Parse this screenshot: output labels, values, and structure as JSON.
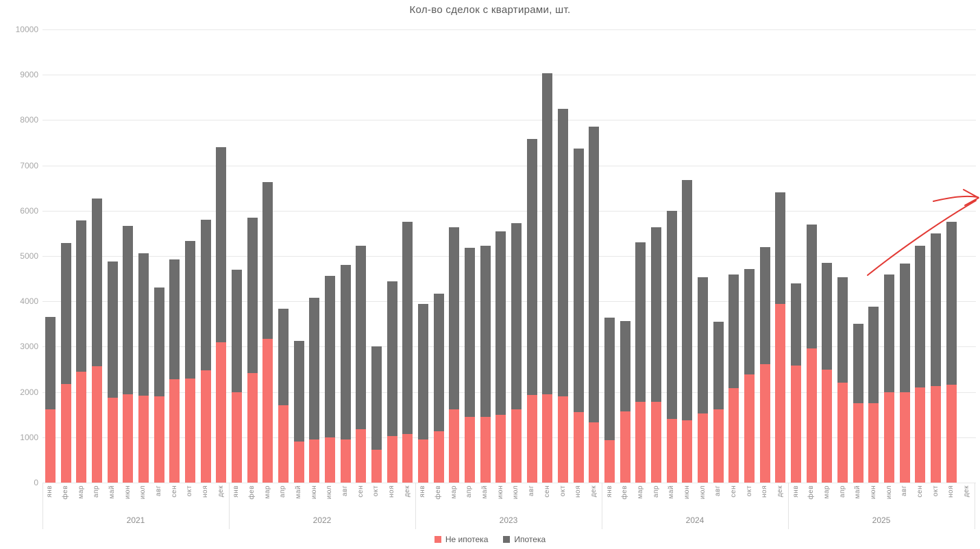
{
  "annotation": {
    "type": "hand-drawn-arrow",
    "color": "#e23a35"
  },
  "chart_data": {
    "type": "bar",
    "stacked": true,
    "title": "Кол-во сделок с квартирами, шт.",
    "xlabel": "",
    "ylabel": "",
    "ylim": [
      0,
      10000
    ],
    "ytick_step": 1000,
    "grid": true,
    "legend_position": "bottom",
    "month_labels": [
      "янв",
      "фев",
      "мар",
      "апр",
      "май",
      "июн",
      "июл",
      "авг",
      "сен",
      "окт",
      "ноя",
      "дек"
    ],
    "year_groups": [
      {
        "label": "2021"
      },
      {
        "label": "2022"
      },
      {
        "label": "2023"
      },
      {
        "label": "2024"
      },
      {
        "label": "2025"
      }
    ],
    "series": [
      {
        "name": "Не ипотека",
        "color": "#f7726e",
        "values": [
          1620,
          2180,
          2450,
          2570,
          1880,
          1950,
          1920,
          1900,
          2280,
          2300,
          2480,
          3100,
          2000,
          2420,
          3170,
          1700,
          900,
          950,
          1000,
          950,
          1180,
          730,
          1020,
          1080,
          950,
          1130,
          1620,
          1450,
          1450,
          1500,
          1620,
          1930,
          1950,
          1900,
          1550,
          1330,
          930,
          1570,
          1790,
          1790,
          1400,
          1380,
          1520,
          1620,
          2090,
          2380,
          2620,
          3950,
          2580,
          2960,
          2500,
          2210,
          1750,
          1760,
          2000,
          2000,
          2100,
          2130,
          2160,
          null
        ]
      },
      {
        "name": "Ипотека",
        "color": "#6d6d6d",
        "values": [
          2030,
          3100,
          3330,
          3700,
          3000,
          3710,
          3140,
          2400,
          2640,
          3040,
          3320,
          4300,
          2700,
          3430,
          3460,
          2130,
          2230,
          3130,
          3560,
          3850,
          4050,
          2270,
          3420,
          4670,
          2990,
          3040,
          4010,
          3730,
          3770,
          4050,
          4110,
          5650,
          7080,
          6350,
          5820,
          6530,
          2710,
          2000,
          3510,
          3840,
          4600,
          5290,
          3010,
          1930,
          2510,
          2340,
          2580,
          2450,
          1810,
          2740,
          2350,
          2320,
          1750,
          2120,
          2600,
          2830,
          3130,
          3370,
          3590,
          null
        ]
      }
    ]
  }
}
